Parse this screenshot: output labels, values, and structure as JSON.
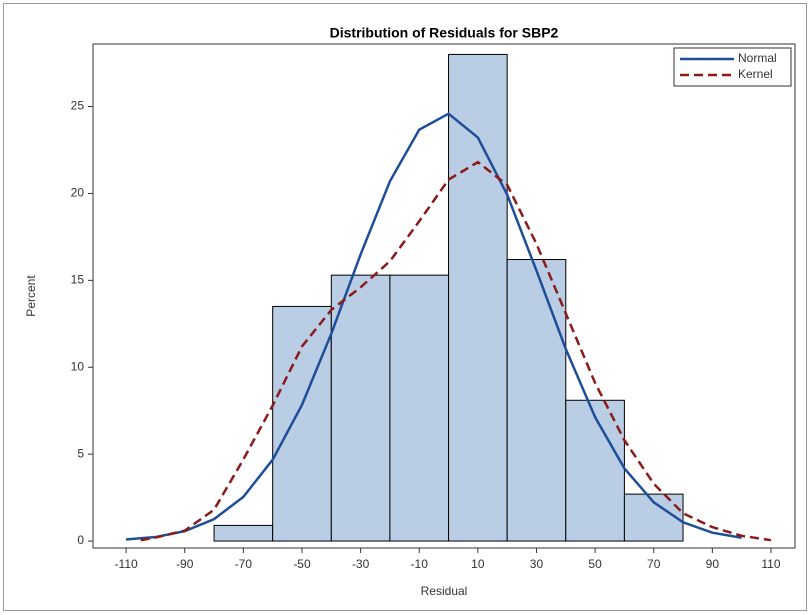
{
  "chart_data": {
    "type": "histogram",
    "title": "Distribution of Residuals for SBP2",
    "x_label": "Residual",
    "y_label": "Percent",
    "bins": [
      -80,
      -60,
      -40,
      -20,
      0,
      20,
      40,
      60,
      80
    ],
    "values": [
      0.9,
      13.5,
      15.3,
      15.3,
      28,
      16.2,
      8.1,
      2.7
    ],
    "color": "#b9cde5",
    "xlim": [
      -121.3,
      118.2
    ],
    "ylim": [
      -0.4,
      28.6
    ],
    "xticks": [
      -110,
      -90,
      -70,
      -50,
      -30,
      -10,
      10,
      30,
      50,
      70,
      90,
      110
    ],
    "yticks": [
      0,
      5,
      10,
      15,
      20,
      25
    ],
    "legend": "top-right",
    "series": [
      {
        "name": "Normal",
        "color": "#1f4e99",
        "style": "solid",
        "x": [
          -110,
          -100,
          -90,
          -80,
          -70,
          -60,
          -50,
          -40,
          -30,
          -20,
          -10,
          0,
          10,
          20,
          30,
          40,
          50,
          60,
          70,
          80,
          90,
          100
        ],
        "values": [
          0.09,
          0.23,
          0.57,
          1.26,
          2.54,
          4.68,
          7.84,
          11.93,
          16.49,
          20.7,
          23.67,
          24.59,
          23.22,
          19.93,
          15.56,
          11.05,
          7.13,
          4.18,
          2.23,
          1.08,
          0.48,
          0.19
        ]
      },
      {
        "name": "Kernel",
        "color": "#8b1a1a",
        "style": "dashed",
        "x": [
          -105,
          -100,
          -90,
          -80,
          -70,
          -60,
          -50,
          -40,
          -30,
          -20,
          -10,
          0,
          10,
          20,
          30,
          40,
          50,
          60,
          70,
          80,
          90,
          100,
          110
        ],
        "values": [
          0.05,
          0.2,
          0.6,
          1.8,
          4.7,
          7.8,
          11.2,
          13.3,
          14.6,
          16.1,
          18.4,
          20.8,
          21.8,
          20.5,
          17.1,
          13.1,
          9.1,
          5.8,
          3.3,
          1.6,
          0.8,
          0.3,
          0.05
        ]
      }
    ]
  }
}
